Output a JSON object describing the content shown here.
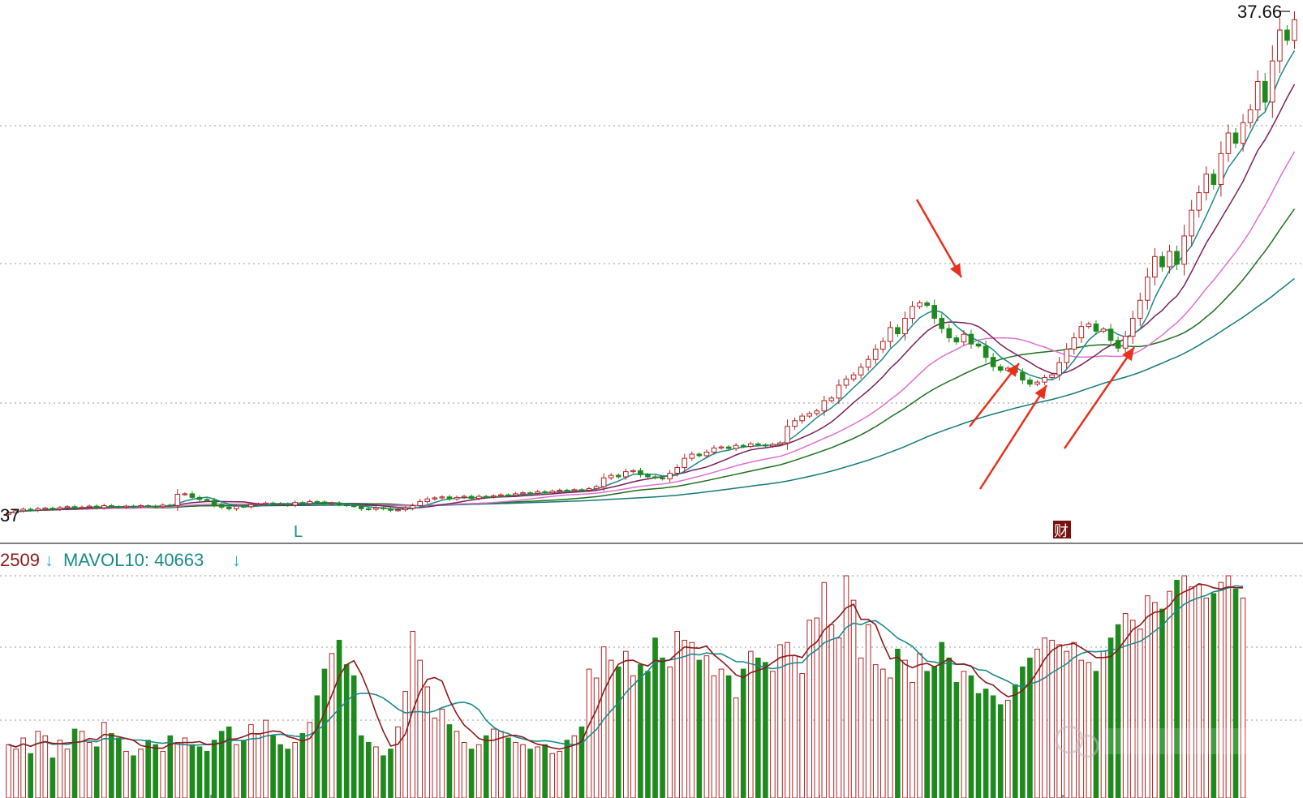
{
  "chart_data": {
    "type": "candlestick",
    "price_panel": {
      "high_label": "37.66",
      "low_label": "37",
      "marker_l": "L",
      "marker_cai": "财",
      "ma_colors": {
        "ma5": "#1a8a8a",
        "ma10": "#7b1f5a",
        "ma20": "#e070d0",
        "ma30": "#1e6f1e",
        "ma60": "#137a7a"
      },
      "up_color": "#b22222",
      "down_color": "#1e8a1e",
      "annotation_color": "#e8301c",
      "closes": [
        38.2,
        38.6,
        38.9,
        38.7,
        39.0,
        39.1,
        38.9,
        39.2,
        39.4,
        39.1,
        39.3,
        39.5,
        39.2,
        39.6,
        39.4,
        39.3,
        39.5,
        39.4,
        39.6,
        39.5,
        39.4,
        39.7,
        39.6,
        41.8,
        41.9,
        41.2,
        40.8,
        40.6,
        39.8,
        39.3,
        39.0,
        39.5,
        39.4,
        39.8,
        39.9,
        40.1,
        40.0,
        39.9,
        39.7,
        40.2,
        40.0,
        40.4,
        40.3,
        40.0,
        40.1,
        39.8,
        39.6,
        39.5,
        39.0,
        38.9,
        39.2,
        39.0,
        38.7,
        38.8,
        39.1,
        39.6,
        40.4,
        40.9,
        41.1,
        41.3,
        40.9,
        41.2,
        41.4,
        41.0,
        41.4,
        41.3,
        41.5,
        41.7,
        41.6,
        41.9,
        42.1,
        42.0,
        42.3,
        42.1,
        42.4,
        42.6,
        42.5,
        42.7,
        42.6,
        42.9,
        43.3,
        45.0,
        45.5,
        45.2,
        46.2,
        46.4,
        45.6,
        45.2,
        45.0,
        44.8,
        45.9,
        47.0,
        48.8,
        49.6,
        49.3,
        50.0,
        50.8,
        51.0,
        50.7,
        51.3,
        51.1,
        51.6,
        51.4,
        51.2,
        51.5,
        51.8,
        55.0,
        56.1,
        57.0,
        57.5,
        58.0,
        60.0,
        60.5,
        63.0,
        64.2,
        65.0,
        66.5,
        68.0,
        70.0,
        71.5,
        74.2,
        73.0,
        76.0,
        78.3,
        79.0,
        78.5,
        76.0,
        74.0,
        72.2,
        71.4,
        72.9,
        71.0,
        70.6,
        68.4,
        66.6,
        65.9,
        66.3,
        65.5,
        64.0,
        63.2,
        63.6,
        64.5,
        65.0,
        67.4,
        70.0,
        72.2,
        74.4,
        74.9,
        73.5,
        73.9,
        71.7,
        70.2,
        72.5,
        76.0,
        79.5,
        84.0,
        88.0,
        86.0,
        89.0,
        86.5,
        92.0,
        97.0,
        100.4,
        104.0,
        102.0,
        108.0,
        112.0,
        110.0,
        114.0,
        116.5,
        122.0,
        118.0,
        126.0,
        132.0,
        130.0,
        134.0
      ]
    },
    "volume_panel": {
      "mavol5_label": "2509",
      "mavol5_arrow": "↓",
      "mavol10_label": "MAVOL10: 40663",
      "mavol10_arrow": "↓",
      "mavol5_color": "#8b1a1a",
      "mavol10_color": "#1a8a8a",
      "volumes": [
        24,
        22,
        27,
        20,
        30,
        28,
        18,
        26,
        22,
        31,
        30,
        25,
        23,
        34,
        29,
        27,
        21,
        19,
        22,
        26,
        24,
        21,
        28,
        25,
        27,
        24,
        23,
        21,
        26,
        30,
        32,
        24,
        26,
        33,
        29,
        35,
        28,
        24,
        22,
        25,
        29,
        34,
        46,
        58,
        65,
        71,
        60,
        55,
        28,
        25,
        23,
        19,
        22,
        32,
        48,
        75,
        62,
        50,
        36,
        40,
        33,
        30,
        25,
        22,
        24,
        28,
        31,
        30,
        27,
        25,
        24,
        22,
        23,
        24,
        20,
        21,
        26,
        28,
        32,
        58,
        54,
        68,
        62,
        59,
        66,
        55,
        60,
        57,
        72,
        63,
        59,
        75,
        71,
        70,
        62,
        64,
        55,
        58,
        55,
        45,
        58,
        66,
        63,
        61,
        57,
        69,
        70,
        64,
        56,
        80,
        81,
        97,
        78,
        72,
        100,
        89,
        63,
        78,
        60,
        58,
        54,
        67,
        62,
        52,
        65,
        57,
        59,
        70,
        63,
        52,
        57,
        55,
        47,
        49,
        46,
        42,
        44,
        51,
        59,
        63,
        67,
        72,
        71,
        69,
        66,
        70,
        62,
        61,
        57,
        66,
        72,
        78,
        83,
        80,
        76,
        91,
        88,
        85,
        93,
        98,
        100,
        95,
        96,
        90,
        92,
        97,
        100,
        94,
        90
      ]
    }
  }
}
